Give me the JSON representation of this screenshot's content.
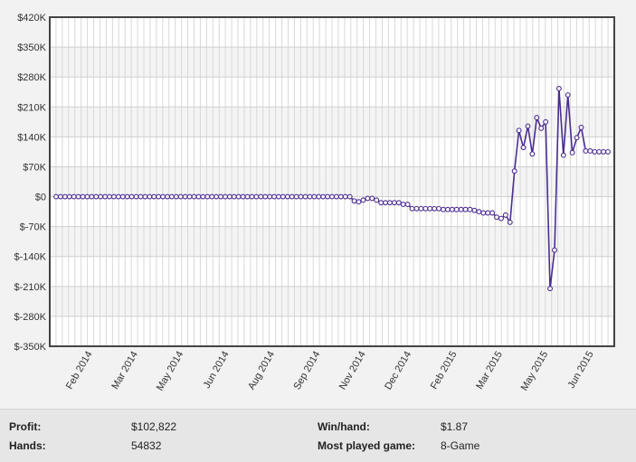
{
  "chart_data": {
    "type": "line",
    "title": "",
    "xlabel": "",
    "ylabel": "",
    "ylim": [
      -350000,
      420000
    ],
    "y_ticks": [
      -350000,
      -280000,
      -210000,
      -140000,
      -70000,
      0,
      70000,
      140000,
      210000,
      280000,
      350000,
      420000
    ],
    "y_tick_labels": [
      "$-350K",
      "$-280K",
      "$-210K",
      "$-140K",
      "$-70K",
      "$0",
      "$70K",
      "$140K",
      "$210K",
      "$280K",
      "$350K",
      "$420K"
    ],
    "x_ticks": [
      "Feb 2014",
      "Mar 2014",
      "May 2014",
      "Jun 2014",
      "Aug 2014",
      "Sep 2014",
      "Nov 2014",
      "Dec 2014",
      "Feb 2015",
      "Mar 2015",
      "May 2015",
      "Jun 2015"
    ],
    "grid": true,
    "line_color": "#4b2c91",
    "series": [
      {
        "values": [
          0,
          0,
          0,
          0,
          0,
          0,
          0,
          0,
          0,
          0,
          0,
          0,
          0,
          0,
          0,
          0,
          0,
          0,
          0,
          0,
          0,
          0,
          0,
          0,
          0,
          0,
          0,
          0,
          0,
          0,
          0,
          0,
          0,
          0,
          0,
          0,
          0,
          0,
          0,
          0,
          0,
          0,
          0,
          0,
          0,
          0,
          0,
          0,
          0,
          0,
          0,
          0,
          0,
          0,
          0,
          0,
          0,
          0,
          0,
          0,
          0,
          0,
          0,
          0,
          0,
          0,
          0,
          -10000,
          -12000,
          -8000,
          -4000,
          -4000,
          -8000,
          -14000,
          -14000,
          -14000,
          -14000,
          -14000,
          -18000,
          -18000,
          -28000,
          -28000,
          -28000,
          -28000,
          -28000,
          -28000,
          -28000,
          -30000,
          -30000,
          -30000,
          -30000,
          -30000,
          -30000,
          -30000,
          -32000,
          -35000,
          -38000,
          -38000,
          -38000,
          -48000,
          -51000,
          -43000,
          -60000,
          60000,
          155000,
          115000,
          165000,
          100000,
          185000,
          160000,
          175000,
          -215000,
          -125000,
          253000,
          97000,
          238000,
          103000,
          138000,
          162000,
          107000,
          107000,
          105000,
          105000,
          105000,
          105000
        ]
      }
    ]
  },
  "stats": {
    "profit_label": "Profit:",
    "profit_value": "$102,822",
    "hands_label": "Hands:",
    "hands_value": "54832",
    "winhand_label": "Win/hand:",
    "winhand_value": "$1.87",
    "game_label": "Most played game:",
    "game_value": "8-Game"
  }
}
